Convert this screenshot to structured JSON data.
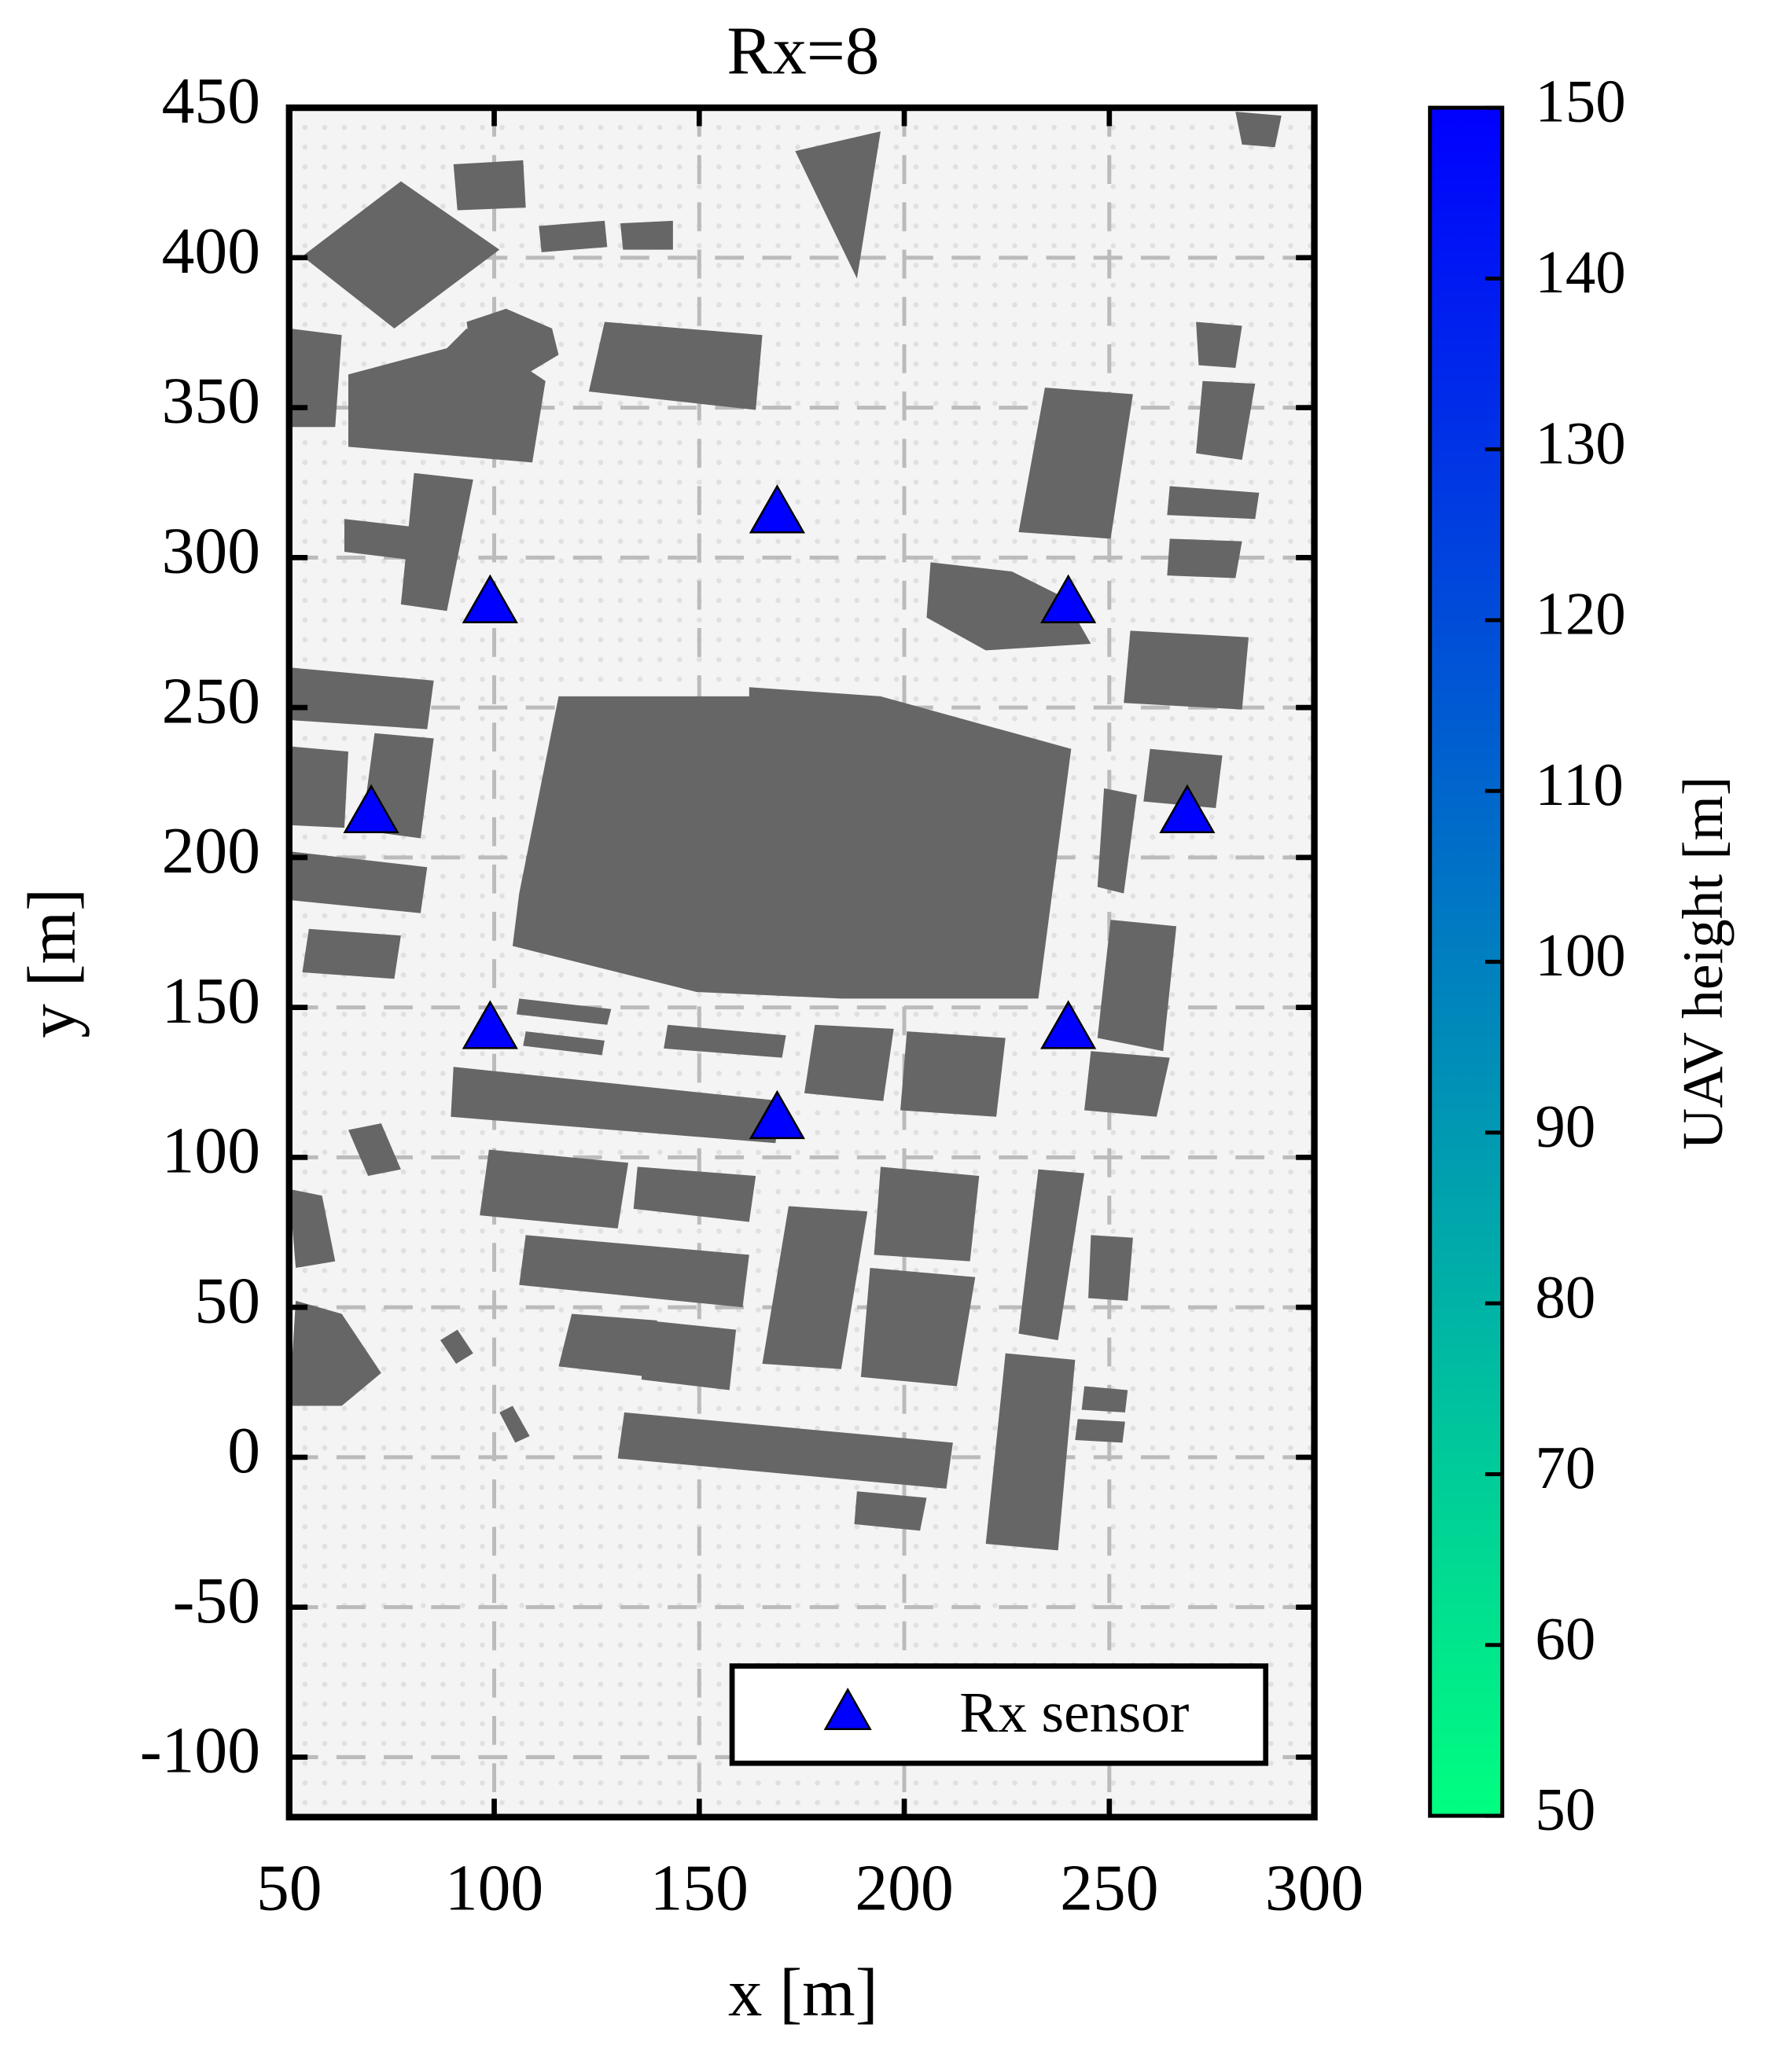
{
  "chart_data": {
    "type": "scatter",
    "title": "Rx=8",
    "x_label": "x [m]",
    "y_label": "y [m]",
    "xlim": [
      50,
      300
    ],
    "xticks": [
      50,
      100,
      150,
      200,
      250,
      300
    ],
    "ylim": [
      -120,
      450
    ],
    "yticks": [
      -100,
      -50,
      0,
      50,
      100,
      150,
      200,
      250,
      300,
      350,
      400,
      450
    ],
    "grid": true,
    "legend": "lower right",
    "series": [
      {
        "name": "Rx sensor",
        "color": "#0000ff",
        "x": [
          70,
          99,
          169,
          240,
          269,
          240,
          169,
          99
        ],
        "y": [
          215,
          285,
          315,
          285,
          215,
          143,
          113,
          143
        ]
      }
    ],
    "colorbar": {
      "label": "UAV height [m]",
      "lim": [
        50,
        150
      ],
      "ticks": [
        50,
        60,
        70,
        80,
        90,
        100,
        110,
        120,
        130,
        140,
        150
      ],
      "colors": [
        "#00ff80",
        "#0000ff"
      ]
    }
  }
}
